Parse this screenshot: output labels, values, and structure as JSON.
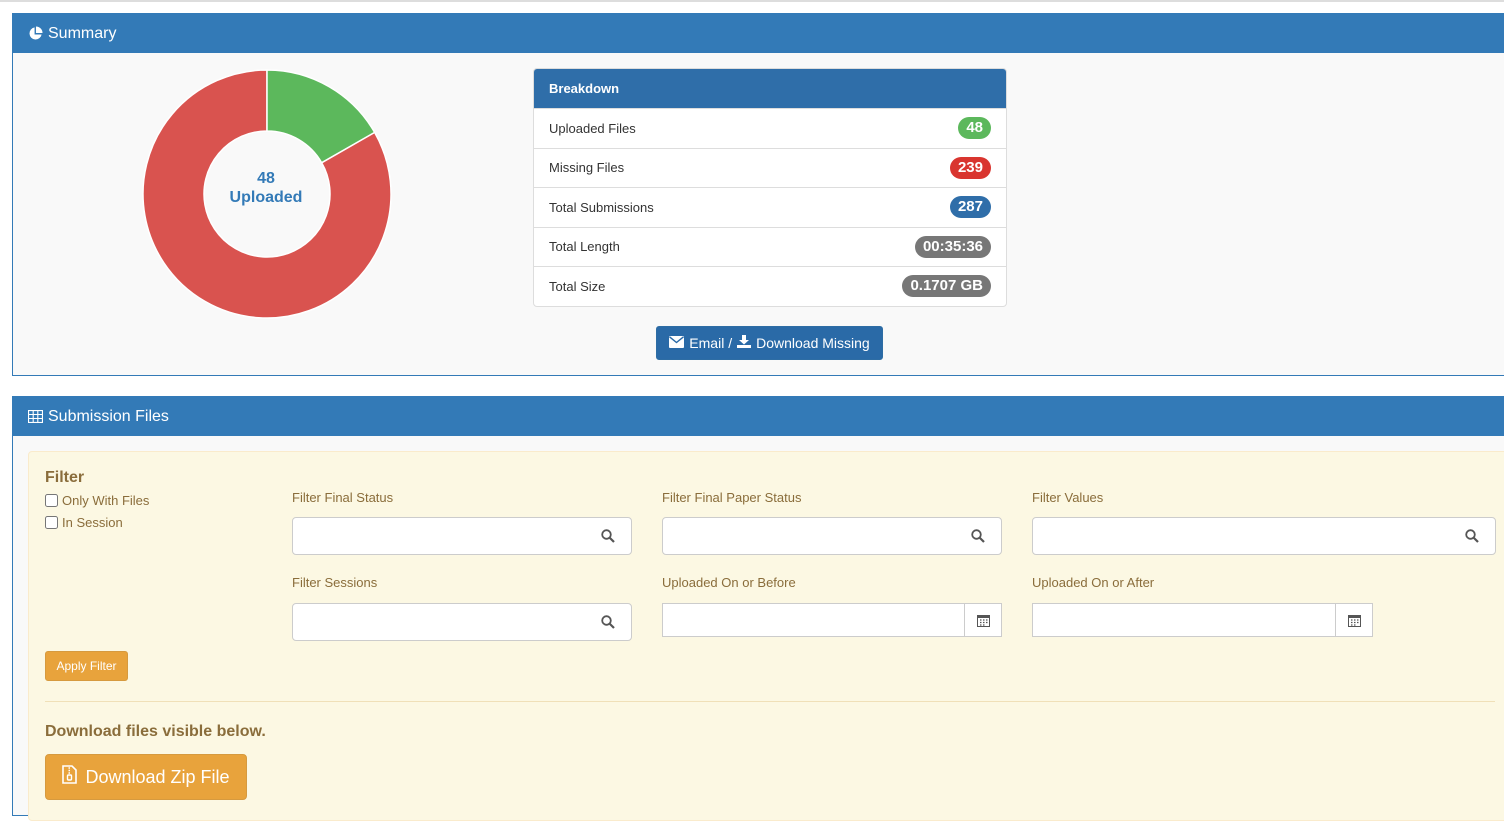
{
  "summary": {
    "title": "Summary",
    "icon": "pie-chart-icon",
    "donut": {
      "uploaded_count": "48",
      "uploaded_label": "Uploaded",
      "uploaded_value": 48,
      "missing_value": 239,
      "colors": {
        "uploaded": "#5cb85c",
        "missing": "#d9534f"
      }
    },
    "breakdown": {
      "title": "Breakdown",
      "rows": [
        {
          "label": "Uploaded Files",
          "value": "48",
          "color": "#5cb85c"
        },
        {
          "label": "Missing Files",
          "value": "239",
          "color": "#d9352f"
        },
        {
          "label": "Total Submissions",
          "value": "287",
          "color": "#2f6ea9"
        },
        {
          "label": "Total Length",
          "value": "00:35:36",
          "color": "#777777"
        },
        {
          "label": "Total Size",
          "value": "0.1707 GB",
          "color": "#777777"
        }
      ]
    },
    "email_button": {
      "part1": "Email /",
      "part2": "Download Missing"
    }
  },
  "files": {
    "title": "Submission Files",
    "icon": "table-icon",
    "filter": {
      "title": "Filter",
      "only_with_files": "Only With Files",
      "in_session": "In Session",
      "final_status_label": "Filter Final Status",
      "final_paper_status_label": "Filter Final Paper Status",
      "values_label": "Filter Values",
      "sessions_label": "Filter Sessions",
      "uploaded_before_label": "Uploaded On or Before",
      "uploaded_after_label": "Uploaded On or After",
      "apply_label": "Apply Filter"
    },
    "download_note": "Download files visible below.",
    "zip_button": "Download Zip File"
  },
  "colors": {
    "primary": "#337ab7",
    "warning": "#e8a33c",
    "warning_text": "#8a6d3b"
  }
}
